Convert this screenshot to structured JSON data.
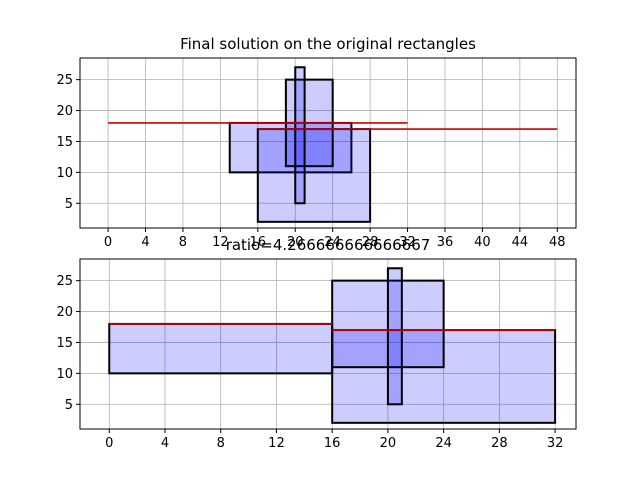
{
  "chart_data": [
    {
      "type": "rectangles",
      "title": "Final solution on the original rectangles",
      "xlim": [
        -3,
        50
      ],
      "ylim": [
        1,
        28.5
      ],
      "xticks": [
        0,
        4,
        8,
        12,
        16,
        20,
        24,
        28,
        32,
        36,
        40,
        44,
        48
      ],
      "yticks": [
        5,
        10,
        15,
        20,
        25
      ],
      "grid": true,
      "rectangles": [
        {
          "x0": 13,
          "x1": 26,
          "y0": 10,
          "y1": 18
        },
        {
          "x0": 16,
          "x1": 28,
          "y0": 2,
          "y1": 17
        },
        {
          "x0": 19,
          "x1": 24,
          "y0": 11,
          "y1": 25
        },
        {
          "x0": 20,
          "x1": 21,
          "y0": 5,
          "y1": 27
        }
      ],
      "lines": [
        {
          "x0": 0,
          "x1": 32,
          "y": 18
        },
        {
          "x0": 16,
          "x1": 48,
          "y": 17
        }
      ]
    },
    {
      "type": "rectangles",
      "title": "ratio=4.266666666666667",
      "xlim": [
        -2.1,
        33.5
      ],
      "ylim": [
        1,
        28.5
      ],
      "xticks": [
        0,
        4,
        8,
        12,
        16,
        20,
        24,
        28,
        32
      ],
      "yticks": [
        5,
        10,
        15,
        20,
        25
      ],
      "grid": true,
      "rectangles": [
        {
          "x0": 0,
          "x1": 16,
          "y0": 10,
          "y1": 18
        },
        {
          "x0": 16,
          "x1": 32,
          "y0": 2,
          "y1": 17
        },
        {
          "x0": 16,
          "x1": 24,
          "y0": 11,
          "y1": 25
        },
        {
          "x0": 20,
          "x1": 21,
          "y0": 5,
          "y1": 27
        }
      ],
      "lines": [
        {
          "x0": 0,
          "x1": 16,
          "y": 18
        },
        {
          "x0": 16,
          "x1": 32,
          "y": 17
        }
      ]
    }
  ],
  "colors": {
    "fill": "#0000ff",
    "edge": "#000000",
    "line": "#cc0000",
    "grid": "#b0b0b0"
  }
}
